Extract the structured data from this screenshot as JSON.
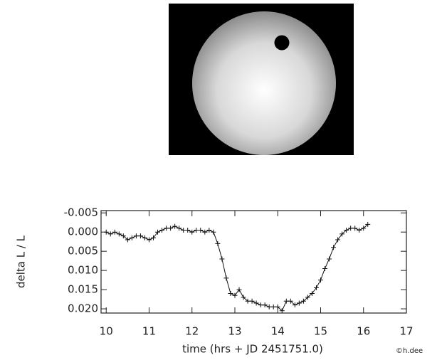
{
  "chart_data": {
    "type": "line",
    "x_label": "time (hrs + JD 2451751.0)",
    "y_label": "delta L / L",
    "credit": "©h.dee",
    "x": [
      10.0,
      10.1,
      10.2,
      10.3,
      10.4,
      10.5,
      10.6,
      10.7,
      10.8,
      10.9,
      11.0,
      11.1,
      11.2,
      11.3,
      11.4,
      11.5,
      11.6,
      11.7,
      11.8,
      11.9,
      12.0,
      12.1,
      12.2,
      12.3,
      12.4,
      12.5,
      12.6,
      12.7,
      12.8,
      12.9,
      13.0,
      13.1,
      13.2,
      13.3,
      13.4,
      13.5,
      13.6,
      13.7,
      13.8,
      13.9,
      14.0,
      14.1,
      14.2,
      14.3,
      14.4,
      14.5,
      14.6,
      14.7,
      14.8,
      14.9,
      15.0,
      15.1,
      15.2,
      15.3,
      15.4,
      15.5,
      15.6,
      15.7,
      15.8,
      15.9,
      16.0,
      16.1
    ],
    "values": [
      0.0,
      0.0005,
      0.0,
      0.0005,
      0.001,
      0.002,
      0.0015,
      0.001,
      0.001,
      0.0015,
      0.002,
      0.0015,
      0.0,
      -0.0005,
      -0.001,
      -0.001,
      -0.0015,
      -0.001,
      -0.0005,
      -0.0005,
      0.0,
      -0.0005,
      -0.0005,
      0.0,
      -0.0005,
      0.0,
      0.003,
      0.007,
      0.012,
      0.016,
      0.0165,
      0.015,
      0.017,
      0.018,
      0.018,
      0.0185,
      0.019,
      0.019,
      0.0195,
      0.0195,
      0.0195,
      0.0205,
      0.018,
      0.018,
      0.019,
      0.0185,
      0.018,
      0.017,
      0.016,
      0.0145,
      0.0125,
      0.0095,
      0.007,
      0.004,
      0.002,
      0.0005,
      -0.0005,
      -0.001,
      -0.001,
      -0.0005,
      -0.001,
      -0.002
    ],
    "color": "#111111",
    "xlim": [
      9.88,
      17
    ],
    "xticks": [
      10,
      11,
      12,
      13,
      14,
      15,
      16,
      17
    ],
    "ylim": [
      0.0211,
      -0.0056
    ],
    "yticks": [
      -0.005,
      {
        "value": 0,
        "label": "0.000"
      },
      0.005,
      {
        "value": 0.01,
        "label": "0.010"
      },
      0.015,
      {
        "value": 0.02,
        "label": "0.020"
      }
    ]
  }
}
